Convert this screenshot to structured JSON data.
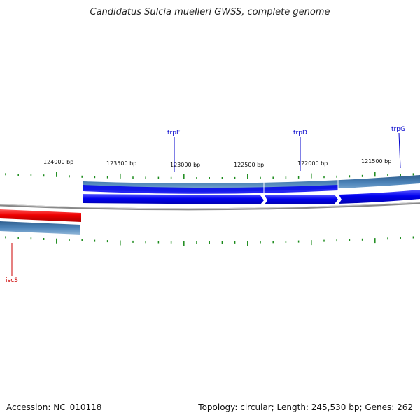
{
  "title": "Candidatus Sulcia muelleri GWSS, complete genome",
  "footer": {
    "accession": "Accession: NC_010118",
    "summary": "Topology: circular; Length: 245,530 bp; Genes: 262"
  },
  "scale_labels": [
    "124000 bp",
    "123500 bp",
    "123000 bp",
    "122500 bp",
    "122000 bp",
    "121500 bp"
  ],
  "genes": [
    {
      "name": "trpE",
      "color": "#0000cc"
    },
    {
      "name": "trpD",
      "color": "#0000cc"
    },
    {
      "name": "trpG",
      "color": "#0000cc"
    },
    {
      "name": "iscS",
      "color": "#cc0000"
    }
  ],
  "colors": {
    "forward_gene": "#0000ee",
    "reverse_gene": "#ee0000",
    "cds_track": "#4a7fb0",
    "backbone": "#888888",
    "ticks": "#1a8a1a"
  }
}
